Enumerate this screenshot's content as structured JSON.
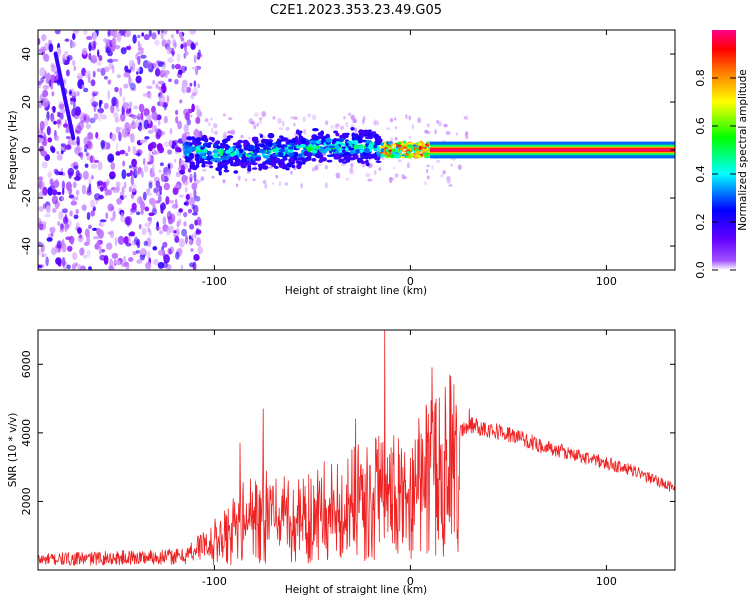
{
  "title": "C2E1.2023.353.23.49.G05",
  "chart_data": [
    {
      "type": "heatmap",
      "xlabel": "Height of straight line (km)",
      "ylabel": "Frequency (Hz)",
      "xlim": [
        -190,
        135
      ],
      "ylim": [
        -50,
        50
      ],
      "xticks": [
        -100,
        0,
        100
      ],
      "yticks": [
        -40,
        -20,
        0,
        20,
        40
      ],
      "colorbar": {
        "label": "Normalized spectral amplitude",
        "range": [
          0,
          1
        ],
        "ticks": [
          "0.0",
          "0.2",
          "0.4",
          "0.6",
          "0.8"
        ],
        "colormap": [
          "#ffffff",
          "#8800ff",
          "#0000ff",
          "#00ffff",
          "#00ff00",
          "#ffff00",
          "#ff8800",
          "#ff0000",
          "#ff0088"
        ]
      },
      "features": [
        {
          "name": "noise",
          "x_range": [
            -190,
            -115
          ],
          "freq_range": [
            -50,
            50
          ],
          "amplitude": 0.1
        },
        {
          "name": "emerging line",
          "x_range": [
            -115,
            -15
          ],
          "freq_center": 0,
          "freq_halfwidth": 6,
          "amplitude": 0.45
        },
        {
          "name": "transition",
          "x_range": [
            -15,
            10
          ],
          "freq_center": 0,
          "freq_halfwidth": 3,
          "amplitude": 0.8
        },
        {
          "name": "steady line",
          "x_range": [
            10,
            135
          ],
          "freq_center": 0,
          "freq_halfwidth": 1.5,
          "amplitude": 0.95
        }
      ]
    },
    {
      "type": "line",
      "xlabel": "Height of straight line (km)",
      "ylabel": "SNR (10 * v/v)",
      "xlim": [
        -190,
        135
      ],
      "ylim": [
        0,
        7000
      ],
      "xticks": [
        -100,
        0,
        100
      ],
      "yticks": [
        2000,
        4000,
        6000
      ],
      "color": "#ee2222",
      "envelope": {
        "x": [
          -190,
          -115,
          -100,
          -80,
          -60,
          -40,
          -20,
          -10,
          0,
          10,
          20,
          30,
          50,
          70,
          90,
          110,
          135
        ],
        "y": [
          300,
          400,
          1000,
          2000,
          1800,
          2200,
          2600,
          2800,
          3000,
          3300,
          3800,
          4300,
          4000,
          3600,
          3300,
          3000,
          2400
        ]
      },
      "spikes": [
        {
          "x": -13,
          "y": 7000
        },
        {
          "x": 11,
          "y": 5900
        },
        {
          "x": -75,
          "y": 4700
        },
        {
          "x": 30,
          "y": 4700
        },
        {
          "x": -28,
          "y": 4400
        },
        {
          "x": -87,
          "y": 3700
        }
      ]
    }
  ]
}
